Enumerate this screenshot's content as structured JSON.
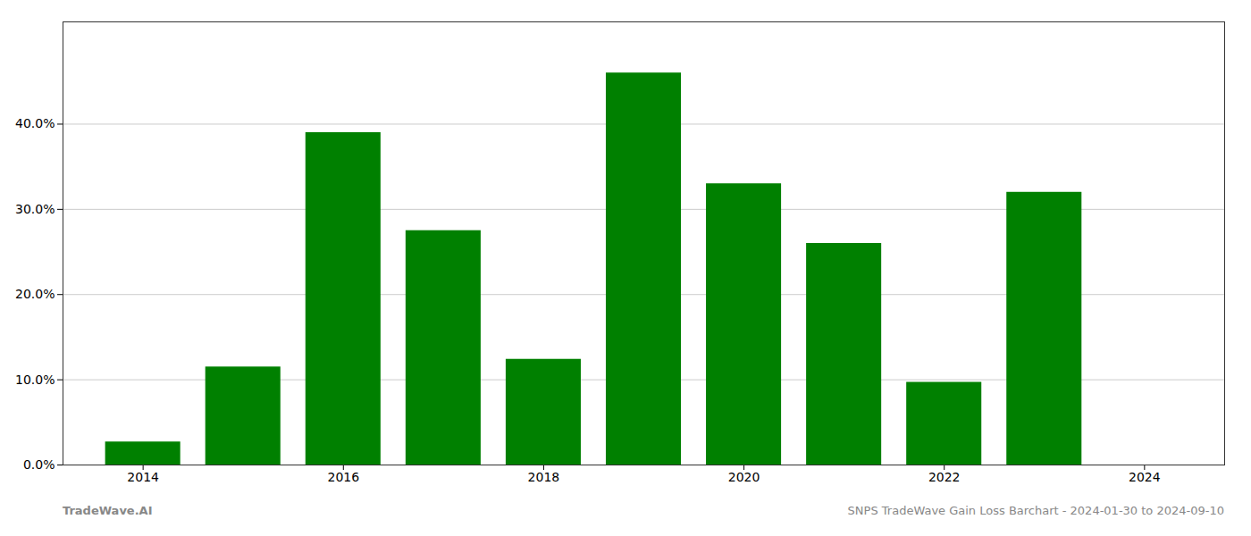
{
  "chart_data": {
    "type": "bar",
    "x": [
      2014,
      2015,
      2016,
      2017,
      2018,
      2019,
      2020,
      2021,
      2022,
      2023
    ],
    "values": [
      0.027,
      0.115,
      0.39,
      0.275,
      0.124,
      0.46,
      0.33,
      0.26,
      0.097,
      0.32
    ],
    "color": "#008000",
    "xlim": [
      2013.2,
      2024.8
    ],
    "xticks": [
      2014,
      2016,
      2018,
      2020,
      2022,
      2024
    ],
    "ylim": [
      0.0,
      0.52
    ],
    "yticks": [
      {
        "value": 0.0,
        "label": "0.0%"
      },
      {
        "value": 0.1,
        "label": "10.0%"
      },
      {
        "value": 0.2,
        "label": "20.0%"
      },
      {
        "value": 0.3,
        "label": "30.0%"
      },
      {
        "value": 0.4,
        "label": "40.0%"
      }
    ],
    "grid": true,
    "annotations": [
      "TradeWave.AI",
      "SNPS TradeWave Gain Loss Barchart - 2024-01-30 to 2024-09-10"
    ]
  }
}
